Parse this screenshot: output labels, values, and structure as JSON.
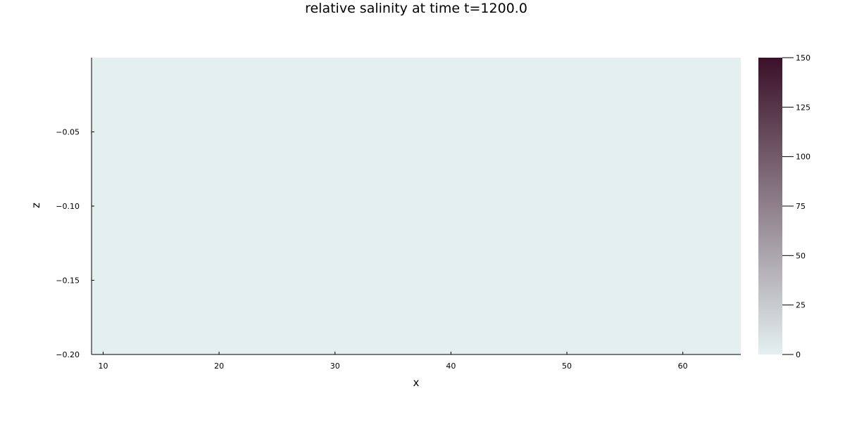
{
  "chart_data": {
    "type": "heatmap",
    "title": "relative salinity at time t=1200.0",
    "xlabel": "x",
    "ylabel": "z",
    "xlim": [
      9,
      65
    ],
    "ylim": [
      -0.2,
      0.0
    ],
    "x_ticks": [
      10,
      20,
      30,
      40,
      50,
      60
    ],
    "y_ticks": [
      -0.2,
      -0.15,
      -0.1,
      -0.05
    ],
    "y_tick_labels": [
      "−0.20",
      "−0.15",
      "−0.10",
      "−0.05"
    ],
    "field_value": 0,
    "grid": false,
    "colorbar": {
      "range": [
        0,
        150
      ],
      "ticks": [
        0,
        25,
        50,
        75,
        100,
        125,
        150
      ],
      "colors": [
        "#e4f0f0",
        "#a6d3e2",
        "#74a6e3",
        "#7a6fd6",
        "#7040b7",
        "#5b1c80",
        "#3a1028"
      ]
    }
  }
}
